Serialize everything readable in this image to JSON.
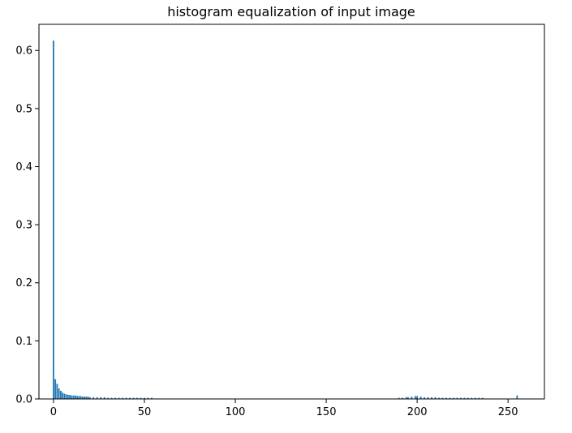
{
  "chart_data": {
    "type": "bar",
    "title": "histogram equalization of input image",
    "xlabel": "",
    "ylabel": "",
    "xlim": [
      -8,
      270
    ],
    "ylim": [
      0,
      0.645
    ],
    "x_ticks": [
      0,
      50,
      100,
      150,
      200,
      250
    ],
    "y_ticks": [
      0.0,
      0.1,
      0.2,
      0.3,
      0.4,
      0.5,
      0.6
    ],
    "x_tick_labels": [
      "0",
      "50",
      "100",
      "150",
      "200",
      "250"
    ],
    "y_tick_labels": [
      "0.0",
      "0.1",
      "0.2",
      "0.3",
      "0.4",
      "0.5",
      "0.6"
    ],
    "grid": false,
    "bar_color": "#1f77b4",
    "x": [
      0,
      1,
      2,
      3,
      4,
      5,
      6,
      7,
      8,
      9,
      10,
      11,
      12,
      13,
      14,
      15,
      16,
      17,
      18,
      19,
      20,
      22,
      24,
      26,
      28,
      30,
      32,
      34,
      36,
      38,
      40,
      42,
      44,
      46,
      48,
      50,
      52,
      54,
      190,
      192,
      194,
      195,
      197,
      199,
      200,
      202,
      204,
      206,
      208,
      210,
      212,
      214,
      216,
      218,
      220,
      222,
      224,
      226,
      228,
      230,
      232,
      234,
      236,
      255
    ],
    "values": [
      0.617,
      0.034,
      0.026,
      0.018,
      0.014,
      0.011,
      0.009,
      0.008,
      0.007,
      0.007,
      0.006,
      0.006,
      0.006,
      0.005,
      0.005,
      0.005,
      0.004,
      0.004,
      0.004,
      0.004,
      0.003,
      0.003,
      0.003,
      0.003,
      0.003,
      0.002,
      0.002,
      0.002,
      0.002,
      0.002,
      0.002,
      0.002,
      0.002,
      0.002,
      0.002,
      0.002,
      0.002,
      0.002,
      0.002,
      0.002,
      0.003,
      0.003,
      0.004,
      0.005,
      0.005,
      0.004,
      0.003,
      0.003,
      0.003,
      0.003,
      0.002,
      0.002,
      0.002,
      0.002,
      0.002,
      0.002,
      0.002,
      0.002,
      0.002,
      0.002,
      0.002,
      0.002,
      0.002,
      0.006
    ]
  }
}
